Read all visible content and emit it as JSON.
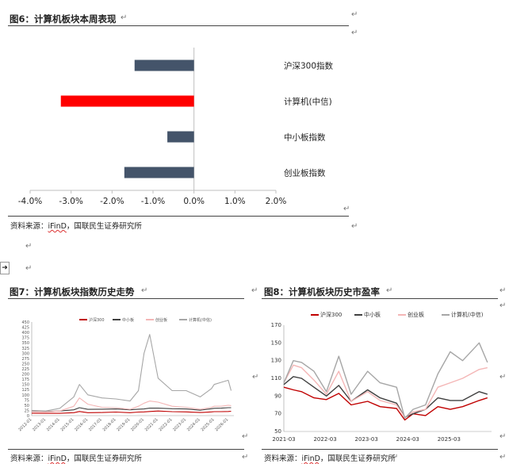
{
  "source_text": "资料来源：iFinD，国联民生证券研究所",
  "source_prefix": "资料来源：",
  "source_ifind": "iFinD",
  "source_suffix": "，国联民生证券研究所",
  "para_mark": "↵",
  "side_arrow": "➜",
  "fig6": {
    "title": "图6：计算机板块本周表现",
    "chart_data": {
      "type": "bar",
      "orientation": "horizontal",
      "categories": [
        "沪深300指数",
        "计算机(中信)",
        "中小板指数",
        "创业板指数"
      ],
      "values": [
        -1.45,
        -3.25,
        -0.65,
        -1.7
      ],
      "colors": [
        "#44546a",
        "#ff0000",
        "#44546a",
        "#44546a"
      ],
      "xlim": [
        -4.0,
        2.0
      ],
      "xticks": [
        "-4.0%",
        "-3.0%",
        "-2.0%",
        "-1.0%",
        "0.0%",
        "1.0%",
        "2.0%"
      ],
      "grid": false
    }
  },
  "fig7": {
    "title": "图7：计算机板块指数历史走势",
    "chart_data": {
      "type": "line",
      "legend": [
        "沪深300",
        "中小板",
        "创业板",
        "计算机(中信)"
      ],
      "legend_position": "top",
      "colors": [
        "#c00000",
        "#404040",
        "#f4b6b6",
        "#a6a6a6"
      ],
      "ylim": [
        0,
        450
      ],
      "yticks": [
        "0",
        "25",
        "50",
        "75",
        "100",
        "125",
        "150",
        "175",
        "200",
        "225",
        "250",
        "275",
        "300",
        "325",
        "350",
        "375",
        "400",
        "425",
        "450"
      ],
      "xticks": [
        "2012-01",
        "2013-01",
        "2014-01",
        "2015-01",
        "2016-01",
        "2017-01",
        "2018-01",
        "2019-01",
        "2020-01",
        "2021-01",
        "2022-01",
        "2023-01",
        "2024-01",
        "2025-01",
        "2026-01"
      ],
      "x": [
        2012,
        2013,
        2014,
        2015,
        2015.4,
        2016,
        2017,
        2018,
        2019,
        2019.6,
        2020,
        2020.4,
        2021,
        2022,
        2023,
        2024,
        2024.8,
        2025,
        2025.5,
        2026,
        2026.2
      ],
      "series": [
        {
          "name": "沪深300",
          "values": [
            12,
            11,
            11,
            14,
            20,
            14,
            15,
            17,
            14,
            17,
            18,
            20,
            22,
            19,
            18,
            15,
            18,
            19,
            19,
            20,
            21
          ]
        },
        {
          "name": "中小板",
          "values": [
            22,
            20,
            22,
            28,
            38,
            30,
            31,
            32,
            28,
            31,
            32,
            36,
            36,
            33,
            32,
            26,
            33,
            35,
            36,
            38,
            38
          ]
        },
        {
          "name": "创业板",
          "values": [
            20,
            18,
            22,
            45,
            85,
            55,
            40,
            38,
            30,
            45,
            60,
            70,
            65,
            45,
            40,
            30,
            40,
            45,
            45,
            50,
            48
          ]
        },
        {
          "name": "计算机(中信)",
          "values": [
            25,
            22,
            35,
            90,
            150,
            100,
            85,
            80,
            70,
            120,
            300,
            390,
            180,
            120,
            120,
            90,
            130,
            150,
            160,
            170,
            120
          ]
        }
      ]
    }
  },
  "fig8": {
    "title": "图8：计算机板块历史市盈率",
    "chart_data": {
      "type": "line",
      "legend": [
        "沪深300",
        "中小板",
        "创业板",
        "计算机(中信)"
      ],
      "legend_position": "top",
      "colors": [
        "#c00000",
        "#404040",
        "#f4b6b6",
        "#a6a6a6"
      ],
      "ylim": [
        50,
        170
      ],
      "yticks": [
        "50",
        "70",
        "90",
        "110",
        "130",
        "150",
        "170"
      ],
      "xticks": [
        "2021-03",
        "2022-03",
        "2023-03",
        "2024-03",
        "2025-03"
      ],
      "x": [
        2021.17,
        2021.4,
        2021.6,
        2021.9,
        2022.2,
        2022.5,
        2022.8,
        2023.2,
        2023.5,
        2023.9,
        2024.1,
        2024.3,
        2024.6,
        2024.9,
        2025.2,
        2025.5,
        2025.9,
        2026.1
      ],
      "series": [
        {
          "name": "沪深300",
          "values": [
            100,
            97,
            95,
            88,
            86,
            93,
            80,
            84,
            78,
            76,
            63,
            70,
            68,
            78,
            75,
            78,
            85,
            88
          ]
        },
        {
          "name": "中小板",
          "values": [
            103,
            112,
            110,
            100,
            90,
            102,
            84,
            97,
            88,
            82,
            66,
            70,
            75,
            88,
            85,
            85,
            95,
            92
          ]
        },
        {
          "name": "创业板",
          "values": [
            105,
            125,
            122,
            108,
            92,
            118,
            84,
            95,
            85,
            80,
            66,
            72,
            75,
            100,
            105,
            110,
            120,
            122
          ]
        },
        {
          "name": "计算机(中信)",
          "values": [
            105,
            130,
            128,
            118,
            95,
            135,
            92,
            118,
            105,
            100,
            65,
            75,
            80,
            115,
            140,
            130,
            150,
            128
          ]
        }
      ]
    }
  }
}
